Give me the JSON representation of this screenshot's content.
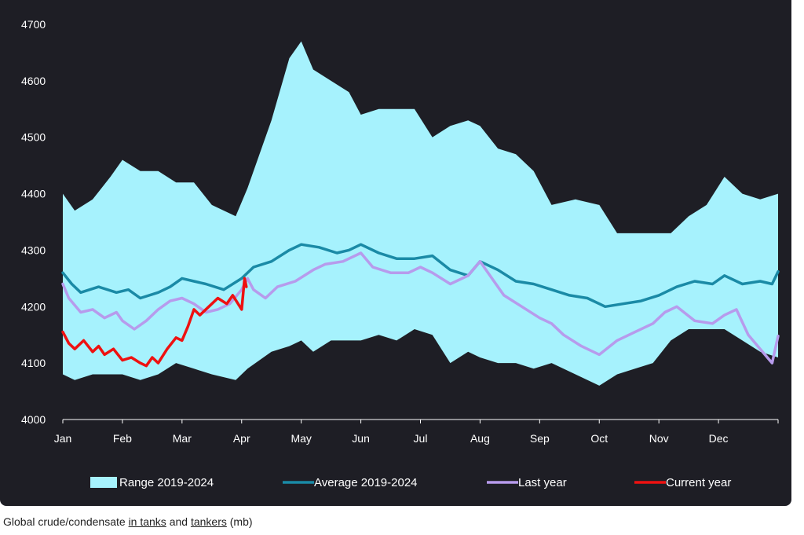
{
  "caption": {
    "prefix": "Global crude/condensate ",
    "link1": "in tanks",
    "middle": " and ",
    "link2": "tankers",
    "suffix": " (mb)"
  },
  "colors": {
    "background": "#1e1e25",
    "range": "#a6f2fd",
    "average": "#1a8aa6",
    "last_year": "#b79bec",
    "current_year": "#ee1111"
  },
  "chart_data": {
    "type": "line",
    "title": "",
    "xlabel": "",
    "ylabel": "",
    "x_unit": "month (1 = Jan)",
    "x_ticks": [
      {
        "label": "Jan",
        "x": 1
      },
      {
        "label": "Feb",
        "x": 2
      },
      {
        "label": "Mar",
        "x": 3
      },
      {
        "label": "Apr",
        "x": 4
      },
      {
        "label": "May",
        "x": 5
      },
      {
        "label": "Jun",
        "x": 6
      },
      {
        "label": "Jul",
        "x": 7
      },
      {
        "label": "Aug",
        "x": 8
      },
      {
        "label": "Sep",
        "x": 9
      },
      {
        "label": "Oct",
        "x": 10
      },
      {
        "label": "Nov",
        "x": 11
      },
      {
        "label": "Dec",
        "x": 12
      }
    ],
    "xlim": [
      1,
      13
    ],
    "ylim": [
      4000,
      4700
    ],
    "y_ticks": [
      4000,
      4100,
      4200,
      4300,
      4400,
      4500,
      4600,
      4700
    ],
    "grid": false,
    "legend_position": "bottom",
    "series": [
      {
        "name": "Range 2019-2024",
        "kind": "band",
        "x": [
          1,
          1.2,
          1.5,
          1.8,
          2,
          2.3,
          2.6,
          2.9,
          3.2,
          3.5,
          3.9,
          4.1,
          4.5,
          4.8,
          5,
          5.2,
          5.5,
          5.8,
          6,
          6.3,
          6.6,
          6.9,
          7.2,
          7.5,
          7.8,
          8,
          8.3,
          8.6,
          8.9,
          9.2,
          9.6,
          10,
          10.3,
          10.6,
          10.9,
          11.2,
          11.5,
          11.8,
          12.1,
          12.4,
          12.7,
          13
        ],
        "upper": [
          4400,
          4370,
          4390,
          4430,
          4460,
          4440,
          4440,
          4420,
          4420,
          4380,
          4360,
          4410,
          4530,
          4640,
          4670,
          4620,
          4600,
          4580,
          4540,
          4550,
          4550,
          4550,
          4500,
          4520,
          4530,
          4520,
          4480,
          4470,
          4440,
          4380,
          4390,
          4380,
          4330,
          4330,
          4330,
          4330,
          4360,
          4380,
          4430,
          4400,
          4390,
          4400
        ],
        "lower": [
          4080,
          4070,
          4080,
          4080,
          4080,
          4070,
          4080,
          4100,
          4090,
          4080,
          4070,
          4090,
          4120,
          4130,
          4140,
          4120,
          4140,
          4140,
          4140,
          4150,
          4140,
          4160,
          4150,
          4100,
          4120,
          4110,
          4100,
          4100,
          4090,
          4100,
          4080,
          4060,
          4080,
          4090,
          4100,
          4140,
          4160,
          4160,
          4160,
          4140,
          4120,
          4110
        ]
      },
      {
        "name": "Average 2019-2024",
        "kind": "line",
        "x": [
          1,
          1.15,
          1.3,
          1.6,
          1.9,
          2.1,
          2.3,
          2.6,
          2.8,
          3,
          3.2,
          3.4,
          3.7,
          4,
          4.2,
          4.5,
          4.8,
          5,
          5.3,
          5.6,
          5.8,
          6,
          6.3,
          6.6,
          6.9,
          7.2,
          7.5,
          7.8,
          8,
          8.3,
          8.6,
          8.9,
          9.2,
          9.5,
          9.8,
          10.1,
          10.4,
          10.7,
          11,
          11.3,
          11.6,
          11.9,
          12.1,
          12.4,
          12.7,
          12.9,
          13
        ],
        "values": [
          4260,
          4240,
          4225,
          4235,
          4225,
          4230,
          4215,
          4225,
          4235,
          4250,
          4245,
          4240,
          4230,
          4250,
          4270,
          4280,
          4300,
          4310,
          4305,
          4295,
          4300,
          4310,
          4295,
          4285,
          4285,
          4290,
          4265,
          4255,
          4280,
          4265,
          4245,
          4240,
          4230,
          4220,
          4215,
          4200,
          4205,
          4210,
          4220,
          4235,
          4245,
          4240,
          4255,
          4240,
          4245,
          4240,
          4262
        ]
      },
      {
        "name": "Last year",
        "kind": "line",
        "x": [
          1,
          1.1,
          1.3,
          1.5,
          1.7,
          1.9,
          2,
          2.2,
          2.4,
          2.6,
          2.8,
          3,
          3.2,
          3.4,
          3.6,
          3.8,
          4,
          4.1,
          4.2,
          4.4,
          4.6,
          4.9,
          5.2,
          5.4,
          5.7,
          6,
          6.2,
          6.5,
          6.8,
          7,
          7.2,
          7.5,
          7.8,
          8,
          8.2,
          8.4,
          8.7,
          9,
          9.2,
          9.4,
          9.7,
          10,
          10.3,
          10.6,
          10.9,
          11.1,
          11.3,
          11.6,
          11.9,
          12.1,
          12.3,
          12.5,
          12.7,
          12.9,
          13
        ],
        "values": [
          4240,
          4215,
          4190,
          4195,
          4180,
          4190,
          4175,
          4160,
          4175,
          4195,
          4210,
          4215,
          4205,
          4190,
          4195,
          4205,
          4230,
          4250,
          4230,
          4215,
          4235,
          4245,
          4265,
          4275,
          4280,
          4295,
          4270,
          4260,
          4260,
          4270,
          4260,
          4240,
          4255,
          4280,
          4250,
          4220,
          4200,
          4180,
          4170,
          4150,
          4130,
          4115,
          4140,
          4155,
          4170,
          4190,
          4200,
          4175,
          4170,
          4185,
          4195,
          4150,
          4125,
          4100,
          4148
        ]
      },
      {
        "name": "Current year",
        "kind": "line",
        "x": [
          1,
          1.1,
          1.2,
          1.35,
          1.5,
          1.6,
          1.7,
          1.85,
          2,
          2.15,
          2.3,
          2.4,
          2.5,
          2.6,
          2.75,
          2.9,
          3,
          3.1,
          3.2,
          3.3,
          3.45,
          3.6,
          3.75,
          3.85,
          4,
          4.05,
          4.08
        ],
        "values": [
          4155,
          4135,
          4125,
          4140,
          4120,
          4130,
          4115,
          4125,
          4105,
          4110,
          4100,
          4095,
          4110,
          4100,
          4125,
          4145,
          4140,
          4165,
          4195,
          4185,
          4200,
          4215,
          4205,
          4220,
          4195,
          4250,
          4235
        ]
      }
    ]
  }
}
